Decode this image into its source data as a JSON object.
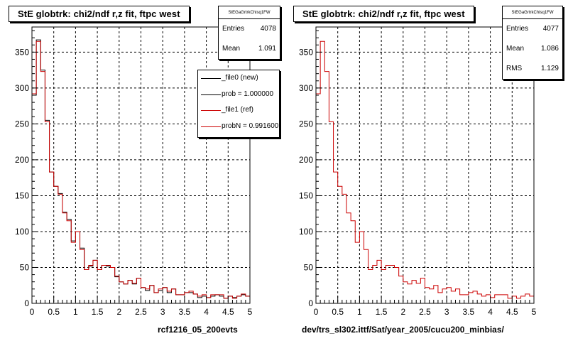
{
  "footer_note": "",
  "colors": {
    "ref": "#cc0000",
    "new": "#000000",
    "grid": "#000000"
  },
  "chart_data": [
    {
      "type": "bar",
      "title": "StE globtrk: chi2/ndf r,z fit, ftpc west",
      "xlabel": "rcf1216_05_200evts",
      "ylabel": "",
      "xlim": [
        0,
        5
      ],
      "ylim": [
        0,
        385
      ],
      "xticks": [
        "0",
        "0.5",
        "1",
        "1.5",
        "2",
        "2.5",
        "3",
        "3.5",
        "4",
        "4.5",
        "5"
      ],
      "yticks": [
        "0",
        "50",
        "100",
        "150",
        "200",
        "250",
        "300",
        "350"
      ],
      "grid": true,
      "bin_width": 0.1,
      "stats": {
        "header": "StEGaGrtrkChisq1FW",
        "entries_label": "Entries",
        "entries_value": "4078",
        "mean_label": "Mean",
        "mean_value": "1.091"
      },
      "legend": {
        "placement": "top-right",
        "entries": [
          {
            "label": "_file0 (new)",
            "color": "#000000"
          },
          {
            "label": "prob = 1.000000",
            "color": "#000000"
          },
          {
            "label": "_file1 (ref)",
            "color": "#cc0000"
          },
          {
            "label": "probN = 0.991600",
            "color": "#cc0000"
          }
        ]
      },
      "series": [
        {
          "name": "_file0 (new)",
          "color": "#000000",
          "values": [
            290,
            367,
            325,
            255,
            183,
            163,
            153,
            127,
            117,
            87,
            100,
            77,
            47,
            52,
            60,
            47,
            53,
            52,
            50,
            37,
            30,
            27,
            32,
            27,
            35,
            22,
            18,
            25,
            15,
            18,
            22,
            15,
            20,
            12,
            12,
            15,
            15,
            13,
            8,
            10,
            8,
            10,
            12,
            10,
            7,
            10,
            8,
            10,
            12,
            10
          ]
        },
        {
          "name": "_file1 (ref)",
          "color": "#cc0000",
          "values": [
            292,
            365,
            323,
            253,
            183,
            163,
            152,
            126,
            115,
            85,
            100,
            75,
            47,
            53,
            60,
            47,
            53,
            53,
            50,
            38,
            30,
            27,
            32,
            28,
            35,
            22,
            20,
            25,
            15,
            20,
            22,
            17,
            20,
            12,
            12,
            15,
            17,
            13,
            10,
            12,
            8,
            12,
            12,
            12,
            7,
            10,
            7,
            10,
            13,
            10
          ]
        }
      ]
    },
    {
      "type": "bar",
      "title": "StE globtrk: chi2/ndf r,z fit, ftpc west",
      "xlabel": "dev/trs_sl302.ittf/Sat/year_2005/cucu200_minbias/",
      "ylabel": "",
      "xlim": [
        0,
        5
      ],
      "ylim": [
        0,
        385
      ],
      "xticks": [
        "0",
        "0.5",
        "1",
        "1.5",
        "2",
        "2.5",
        "3",
        "3.5",
        "4",
        "4.5",
        "5"
      ],
      "yticks": [
        "0",
        "50",
        "100",
        "150",
        "200",
        "250",
        "300",
        "350"
      ],
      "grid": true,
      "bin_width": 0.1,
      "stats": {
        "header": "StEGaGrtrkChisq1FW",
        "entries_label": "Entries",
        "entries_value": "4077",
        "mean_label": "Mean",
        "mean_value": "1.086",
        "rms_label": "RMS",
        "rms_value": "1.129"
      },
      "series": [
        {
          "name": "",
          "color": "#cc0000",
          "values": [
            292,
            365,
            323,
            253,
            183,
            163,
            152,
            126,
            115,
            85,
            100,
            75,
            47,
            53,
            60,
            47,
            53,
            53,
            50,
            38,
            30,
            27,
            32,
            28,
            35,
            22,
            20,
            25,
            15,
            20,
            22,
            17,
            20,
            12,
            12,
            15,
            17,
            13,
            10,
            12,
            8,
            12,
            12,
            12,
            7,
            10,
            7,
            10,
            13,
            10
          ]
        }
      ]
    }
  ]
}
